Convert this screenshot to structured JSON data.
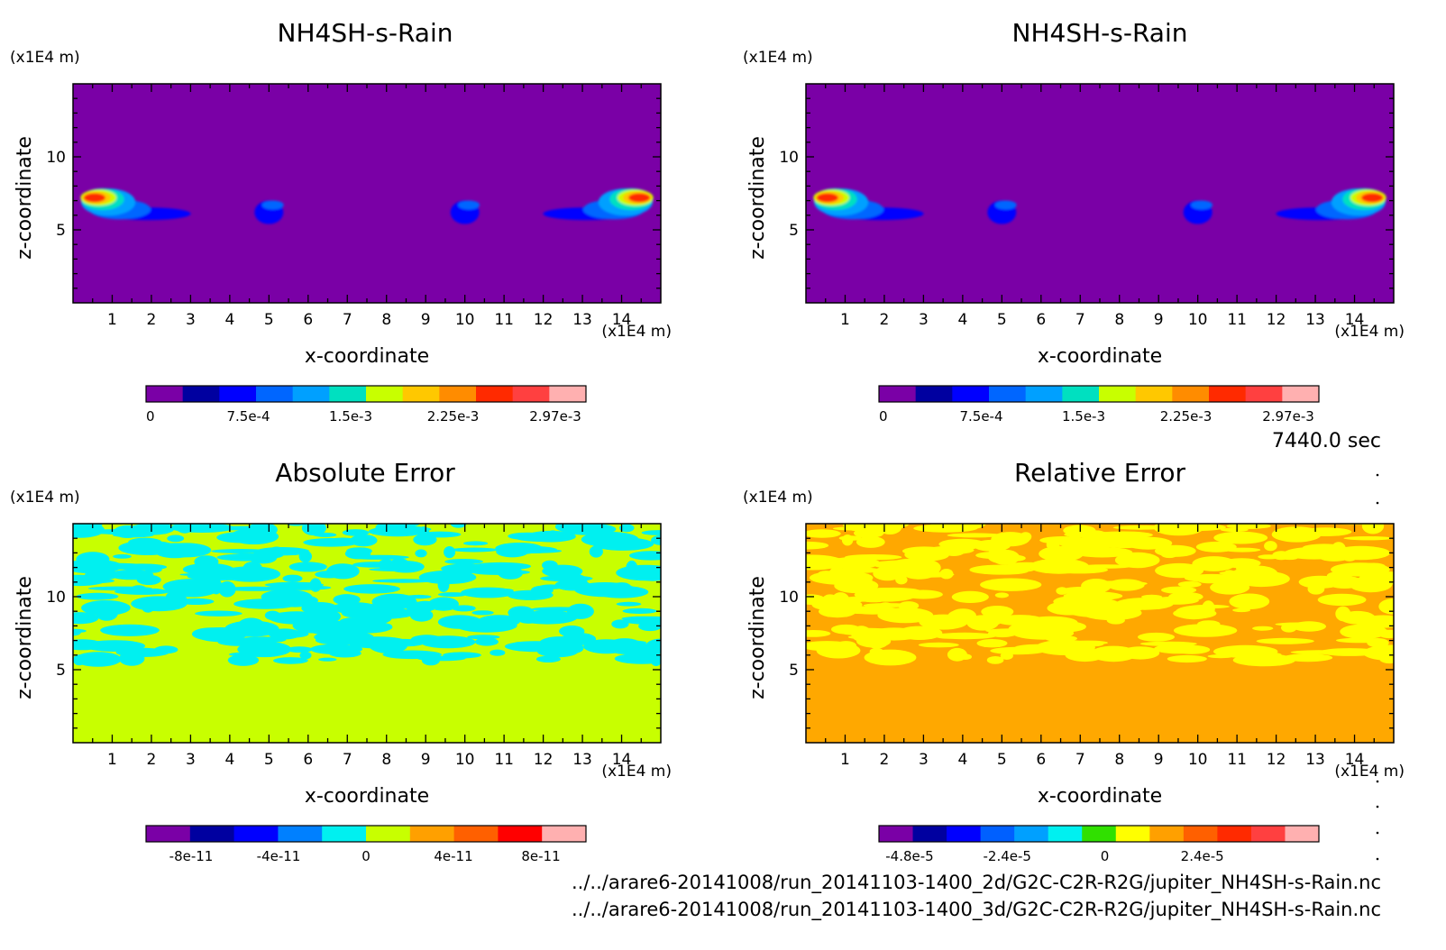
{
  "chart_data": [
    {
      "type": "heatmap",
      "title": "NH4SH-s-Rain",
      "unit_z": "(x1E4 m)",
      "unit_x": "(x1E4 m)",
      "xlabel": "x-coordinate",
      "ylabel": "z-coordinate",
      "xticks": [
        "1",
        "2",
        "3",
        "4",
        "5",
        "6",
        "7",
        "8",
        "9",
        "10",
        "11",
        "12",
        "13",
        "14"
      ],
      "yticks": [
        "5",
        "10"
      ],
      "xlim": [
        0,
        15
      ],
      "ylim": [
        0,
        15
      ],
      "colorbar": {
        "colors": [
          "#7a00a6",
          "#0000a0",
          "#0000ff",
          "#0066ff",
          "#00a0ff",
          "#00e0c0",
          "#c8ff00",
          "#ffc800",
          "#ff8c00",
          "#ff2a00",
          "#ff4040",
          "#ffb0b0"
        ],
        "labels": [
          "0",
          "7.5e-4",
          "1.5e-3",
          "2.25e-3",
          "2.97e-3"
        ]
      },
      "background": "#7a00a6"
    },
    {
      "type": "heatmap",
      "title": "NH4SH-s-Rain",
      "unit_z": "(x1E4 m)",
      "unit_x": "(x1E4 m)",
      "xlabel": "x-coordinate",
      "ylabel": "z-coordinate",
      "xticks": [
        "1",
        "2",
        "3",
        "4",
        "5",
        "6",
        "7",
        "8",
        "9",
        "10",
        "11",
        "12",
        "13",
        "14"
      ],
      "yticks": [
        "5",
        "10"
      ],
      "xlim": [
        0,
        15
      ],
      "ylim": [
        0,
        15
      ],
      "colorbar": {
        "colors": [
          "#7a00a6",
          "#0000a0",
          "#0000ff",
          "#0066ff",
          "#00a0ff",
          "#00e0c0",
          "#c8ff00",
          "#ffc800",
          "#ff8c00",
          "#ff2a00",
          "#ff4040",
          "#ffb0b0"
        ],
        "labels": [
          "0",
          "7.5e-4",
          "1.5e-3",
          "2.25e-3",
          "2.97e-3"
        ]
      },
      "background": "#7a00a6"
    },
    {
      "type": "heatmap",
      "title": "Absolute Error",
      "unit_z": "(x1E4 m)",
      "unit_x": "(x1E4 m)",
      "xlabel": "x-coordinate",
      "ylabel": "z-coordinate",
      "xticks": [
        "1",
        "2",
        "3",
        "4",
        "5",
        "6",
        "7",
        "8",
        "9",
        "10",
        "11",
        "12",
        "13",
        "14"
      ],
      "yticks": [
        "5",
        "10"
      ],
      "xlim": [
        0,
        15
      ],
      "ylim": [
        0,
        15
      ],
      "colorbar": {
        "colors": [
          "#7a00a6",
          "#0000a0",
          "#0000ff",
          "#0080ff",
          "#00f0f0",
          "#c8ff00",
          "#ffa000",
          "#ff6000",
          "#ff0000",
          "#ffb0b0"
        ],
        "labels": [
          "-8e-11",
          "-4e-11",
          "0",
          "4e-11",
          "8e-11"
        ]
      },
      "background": "#c8ff00",
      "pattern_color": "#00f0f0"
    },
    {
      "type": "heatmap",
      "title": "Relative Error",
      "unit_z": "(x1E4 m)",
      "unit_x": "(x1E4 m)",
      "xlabel": "x-coordinate",
      "ylabel": "z-coordinate",
      "xticks": [
        "1",
        "2",
        "3",
        "4",
        "5",
        "6",
        "7",
        "8",
        "9",
        "10",
        "11",
        "12",
        "13",
        "14"
      ],
      "yticks": [
        "5",
        "10"
      ],
      "xlim": [
        0,
        15
      ],
      "ylim": [
        0,
        15
      ],
      "colorbar": {
        "colors": [
          "#7a00a6",
          "#0000a0",
          "#0000ff",
          "#0060ff",
          "#00a0ff",
          "#00f0f0",
          "#30e000",
          "#ffff00",
          "#ffa000",
          "#ff6000",
          "#ff2a00",
          "#ff4040",
          "#ffb0b0"
        ],
        "labels": [
          "-4.8e-5",
          "-2.4e-5",
          "0",
          "2.4e-5"
        ]
      },
      "background": "#ffa800",
      "pattern_color": "#ffff00"
    }
  ],
  "time_label": "7440.0 sec",
  "file_paths": [
    "../../arare6-20141008/run_20141103-1400_2d/G2C-C2R-R2G/jupiter_NH4SH-s-Rain.nc",
    "../../arare6-20141008/run_20141103-1400_3d/G2C-C2R-R2G/jupiter_NH4SH-s-Rain.nc"
  ]
}
